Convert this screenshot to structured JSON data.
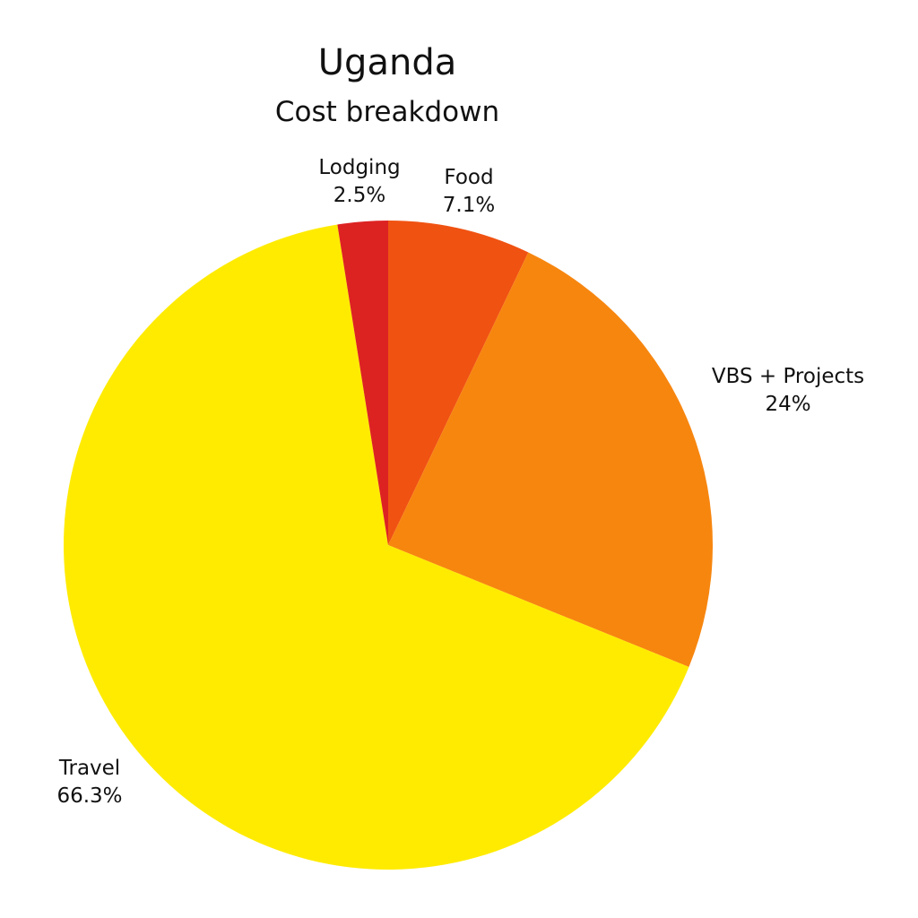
{
  "chart_data": {
    "type": "pie",
    "title": "Uganda",
    "subtitle": "Cost breakdown",
    "slices": [
      {
        "label": "Food",
        "value": 7.1,
        "value_label": "7.1%",
        "color": "#F05212"
      },
      {
        "label": "VBS + Projects",
        "value": 24,
        "value_label": "24%",
        "color": "#F7860F"
      },
      {
        "label": "Travel",
        "value": 66.3,
        "value_label": "66.3%",
        "color": "#FFEB00"
      },
      {
        "label": "Lodging",
        "value": 2.5,
        "value_label": "2.5%",
        "color": "#DD2222"
      }
    ],
    "start_angle": "12 o'clock",
    "direction": "clockwise",
    "legend": "none"
  }
}
